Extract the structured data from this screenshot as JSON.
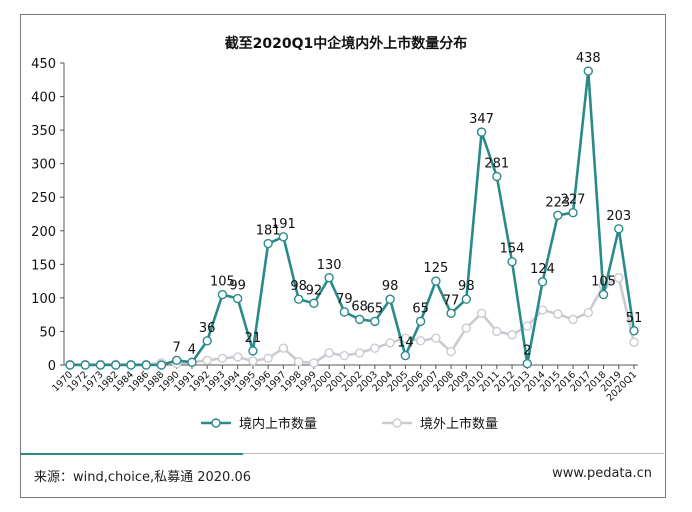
{
  "chart_data": {
    "type": "line",
    "title": "截至2020Q1中企境内外上市数量分布",
    "categories": [
      "1970",
      "1972",
      "1973",
      "1982",
      "1984",
      "1986",
      "1988",
      "1990",
      "1991",
      "1992",
      "1993",
      "1994",
      "1995",
      "1996",
      "1997",
      "1998",
      "1999",
      "2000",
      "2001",
      "2002",
      "2003",
      "2004",
      "2005",
      "2006",
      "2007",
      "2008",
      "2009",
      "2010",
      "2011",
      "2012",
      "2013",
      "2014",
      "2015",
      "2016",
      "2017",
      "2018",
      "2019",
      "2020Q1"
    ],
    "ylim": [
      0,
      450
    ],
    "yticks": [
      0,
      50,
      100,
      150,
      200,
      250,
      300,
      350,
      400,
      450
    ],
    "series": [
      {
        "name": "境内上市数量",
        "color": "#2a8a8a",
        "values": [
          0,
          0,
          0,
          0,
          0,
          0,
          0,
          7,
          4,
          36,
          105,
          99,
          21,
          181,
          191,
          98,
          92,
          130,
          79,
          68,
          65,
          98,
          14,
          65,
          125,
          77,
          98,
          347,
          281,
          154,
          2,
          124,
          223,
          227,
          438,
          105,
          203,
          51
        ],
        "labels": [
          "",
          "",
          "",
          "",
          "",
          "",
          "",
          "7",
          "4",
          "36",
          "105",
          "99",
          "21",
          "181",
          "191",
          "98",
          "92",
          "130",
          "79",
          "68",
          "65",
          "98",
          "14",
          "65",
          "125",
          "77",
          "98",
          "347",
          "281",
          "154",
          "2",
          "124",
          "223",
          "227",
          "438",
          "105",
          "203",
          "51"
        ]
      },
      {
        "name": "境外上市数量",
        "color": "#c8ccd0",
        "values": [
          1,
          1,
          1,
          1,
          1,
          1,
          3,
          2,
          4,
          7,
          10,
          12,
          6,
          10,
          25,
          5,
          3,
          18,
          14,
          18,
          25,
          33,
          40,
          36,
          40,
          20,
          55,
          77,
          50,
          45,
          58,
          82,
          76,
          68,
          78,
          118,
          130,
          34
        ]
      }
    ],
    "legend_position": "bottom",
    "grid": false
  },
  "footer": {
    "source": "来源：wind,choice,私募通 2020.06",
    "site": "www.pedata.cn"
  }
}
